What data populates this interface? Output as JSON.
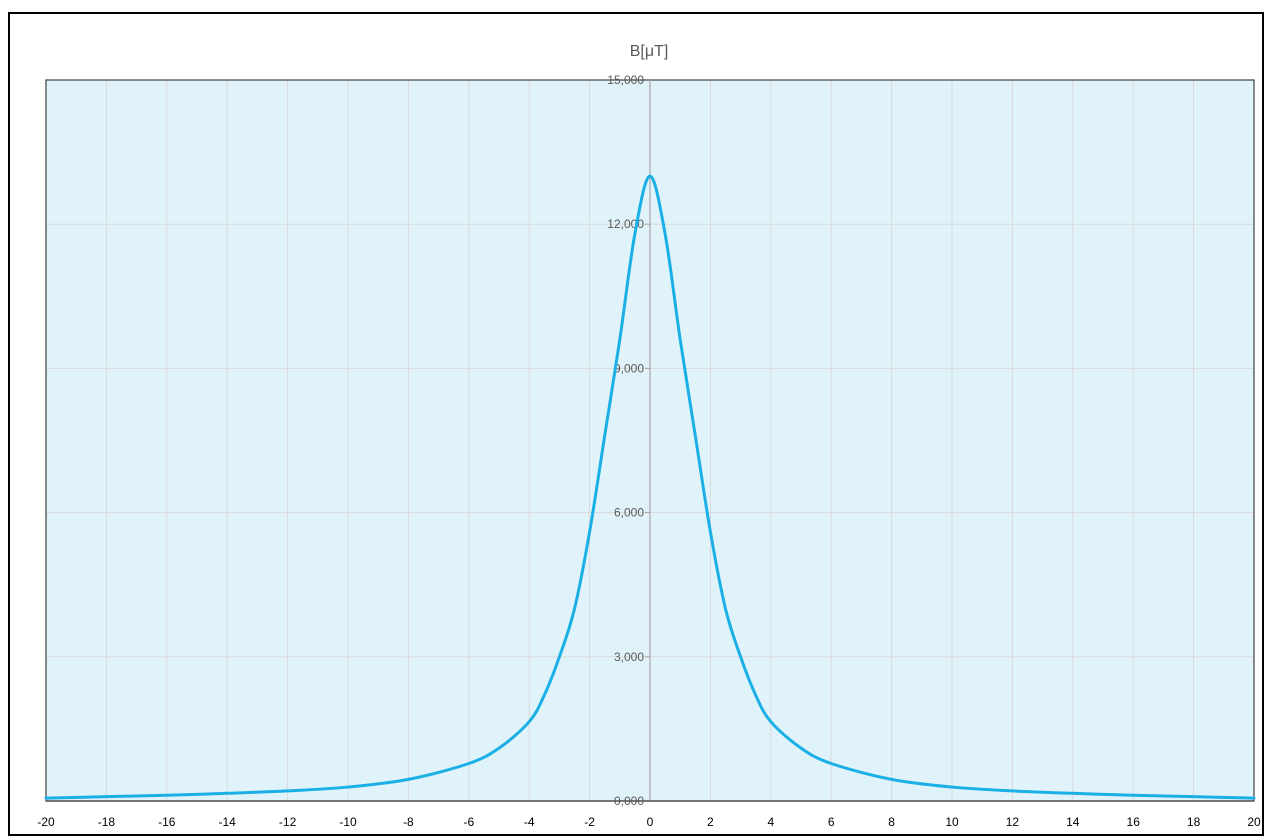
{
  "chart_data": {
    "type": "line",
    "title": "B[μT]",
    "xlabel": "",
    "ylabel": "",
    "xlim": [
      -20,
      20
    ],
    "ylim": [
      0,
      15
    ],
    "x_ticks": [
      "-20",
      "-18",
      "-16",
      "-14",
      "-12",
      "-10",
      "-8",
      "-6",
      "-4",
      "-2",
      "0",
      "2",
      "4",
      "6",
      "8",
      "10",
      "12",
      "14",
      "16",
      "18",
      "20"
    ],
    "y_ticks": [
      "0,000",
      "3,000",
      "6,000",
      "9,000",
      "12,000",
      "15,000"
    ],
    "grid": true,
    "legend": "none",
    "colors": {
      "plot_background": "#E1F3FA",
      "line": "#1AB0E6",
      "grid": "#D9D9D9",
      "axis": "#A6A6A6"
    },
    "series": [
      {
        "x": [
          -20,
          -18,
          -16,
          -14,
          -12,
          -10,
          -8,
          -6,
          -5,
          -4,
          -3.5,
          -3,
          -2.5,
          -2,
          -1.5,
          -1,
          -0.5,
          0,
          0.5,
          1,
          1.5,
          2,
          2.5,
          3,
          3.5,
          4,
          5,
          6,
          8,
          10,
          12,
          14,
          16,
          18,
          20
        ],
        "y": [
          0.06,
          0.09,
          0.12,
          0.16,
          0.21,
          0.29,
          0.45,
          0.78,
          1.1,
          1.65,
          2.2,
          3.0,
          4.0,
          5.6,
          7.6,
          9.6,
          11.8,
          13.0,
          11.8,
          9.6,
          7.6,
          5.6,
          4.0,
          3.0,
          2.2,
          1.65,
          1.1,
          0.78,
          0.45,
          0.29,
          0.21,
          0.16,
          0.12,
          0.09,
          0.06
        ]
      }
    ]
  }
}
